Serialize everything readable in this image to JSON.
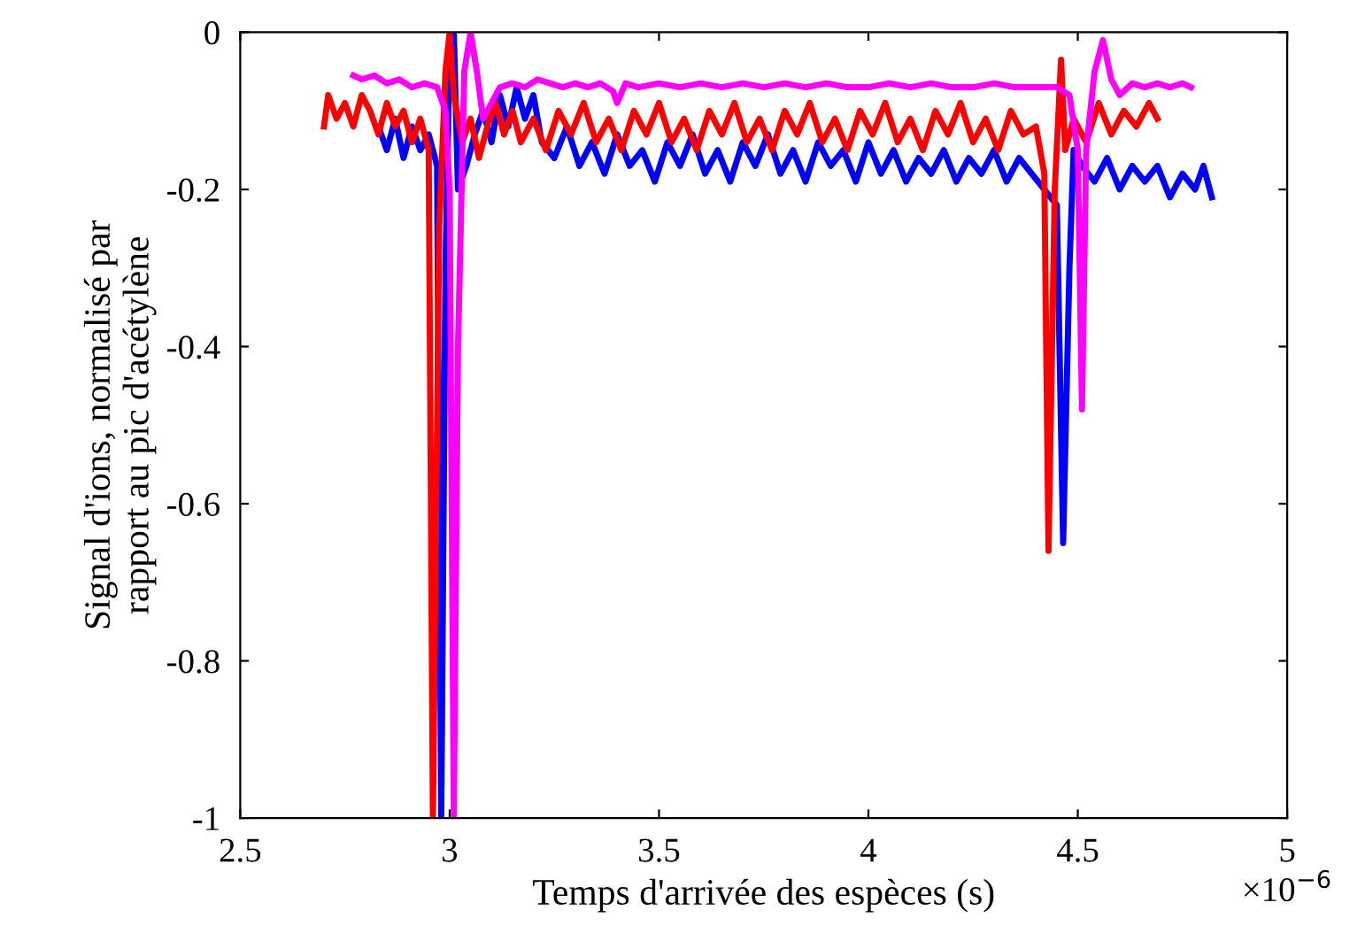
{
  "chart_data": {
    "type": "line",
    "xlabel": "Temps d'arrivée des espèces (s)",
    "ylabel": "Signal d'ions, normalisé par\nrapport au pic d'acétylène",
    "annotations": [
      "×10$^{−6}$"
    ],
    "xlim": [
      2.5,
      5
    ],
    "xticks": [
      2.5,
      3,
      3.5,
      4,
      4.5,
      5
    ],
    "ylim": [
      -1,
      0
    ],
    "yticks": [
      -1,
      -0.8,
      -0.6,
      -0.4,
      -0.2,
      0
    ],
    "grid": false,
    "marker": "none",
    "line_style": "solid",
    "series": [
      {
        "color": "#0000ff",
        "x": [
          2.83,
          2.85,
          2.87,
          2.89,
          2.91,
          2.93,
          2.95,
          2.97,
          2.98,
          2.99,
          3.0,
          3.01,
          3.02,
          3.04,
          3.06,
          3.08,
          3.1,
          3.12,
          3.14,
          3.16,
          3.18,
          3.2,
          3.22,
          3.25,
          3.28,
          3.31,
          3.34,
          3.37,
          3.4,
          3.43,
          3.46,
          3.49,
          3.52,
          3.55,
          3.58,
          3.61,
          3.64,
          3.67,
          3.7,
          3.73,
          3.76,
          3.79,
          3.82,
          3.85,
          3.88,
          3.91,
          3.94,
          3.97,
          4.0,
          4.03,
          4.06,
          4.09,
          4.12,
          4.15,
          4.18,
          4.21,
          4.24,
          4.27,
          4.3,
          4.33,
          4.36,
          4.39,
          4.42,
          4.45,
          4.465,
          4.48,
          4.49,
          4.51,
          4.54,
          4.57,
          4.6,
          4.63,
          4.66,
          4.69,
          4.72,
          4.75,
          4.78,
          4.8,
          4.82
        ],
        "values": [
          -0.12,
          -0.15,
          -0.11,
          -0.16,
          -0.12,
          -0.15,
          -0.13,
          -0.17,
          -1.0,
          -0.3,
          -0.02,
          0.0,
          -0.2,
          -0.17,
          -0.13,
          -0.1,
          -0.14,
          -0.08,
          -0.12,
          -0.07,
          -0.11,
          -0.08,
          -0.14,
          -0.16,
          -0.12,
          -0.17,
          -0.14,
          -0.18,
          -0.13,
          -0.17,
          -0.15,
          -0.19,
          -0.14,
          -0.17,
          -0.13,
          -0.18,
          -0.15,
          -0.19,
          -0.14,
          -0.17,
          -0.13,
          -0.18,
          -0.15,
          -0.19,
          -0.14,
          -0.17,
          -0.15,
          -0.19,
          -0.14,
          -0.18,
          -0.15,
          -0.19,
          -0.16,
          -0.18,
          -0.15,
          -0.19,
          -0.16,
          -0.18,
          -0.15,
          -0.19,
          -0.16,
          -0.18,
          -0.2,
          -0.22,
          -0.65,
          -0.3,
          -0.15,
          -0.17,
          -0.19,
          -0.16,
          -0.2,
          -0.17,
          -0.19,
          -0.17,
          -0.21,
          -0.18,
          -0.2,
          -0.17,
          -0.21
        ]
      },
      {
        "color": "#ff0000",
        "x": [
          2.7,
          2.71,
          2.73,
          2.75,
          2.77,
          2.79,
          2.81,
          2.83,
          2.85,
          2.87,
          2.89,
          2.91,
          2.93,
          2.95,
          2.96,
          2.975,
          2.99,
          3.0,
          3.01,
          3.03,
          3.05,
          3.07,
          3.09,
          3.11,
          3.13,
          3.15,
          3.17,
          3.2,
          3.23,
          3.26,
          3.29,
          3.32,
          3.35,
          3.38,
          3.41,
          3.44,
          3.47,
          3.5,
          3.53,
          3.56,
          3.59,
          3.62,
          3.65,
          3.68,
          3.71,
          3.74,
          3.77,
          3.8,
          3.83,
          3.86,
          3.89,
          3.92,
          3.95,
          3.98,
          4.01,
          4.04,
          4.07,
          4.1,
          4.13,
          4.16,
          4.19,
          4.22,
          4.25,
          4.28,
          4.31,
          4.34,
          4.37,
          4.4,
          4.42,
          4.43,
          4.445,
          4.46,
          4.47,
          4.49,
          4.52,
          4.55,
          4.58,
          4.61,
          4.64,
          4.67,
          4.69
        ],
        "values": [
          -0.12,
          -0.08,
          -0.11,
          -0.09,
          -0.12,
          -0.08,
          -0.1,
          -0.13,
          -0.09,
          -0.12,
          -0.1,
          -0.14,
          -0.11,
          -0.15,
          -1.0,
          -0.25,
          -0.05,
          0.0,
          -0.08,
          -0.14,
          -0.11,
          -0.16,
          -0.12,
          -0.09,
          -0.13,
          -0.1,
          -0.14,
          -0.11,
          -0.15,
          -0.1,
          -0.13,
          -0.09,
          -0.14,
          -0.11,
          -0.15,
          -0.1,
          -0.13,
          -0.09,
          -0.14,
          -0.11,
          -0.15,
          -0.1,
          -0.13,
          -0.09,
          -0.14,
          -0.11,
          -0.15,
          -0.1,
          -0.13,
          -0.09,
          -0.14,
          -0.11,
          -0.15,
          -0.1,
          -0.13,
          -0.09,
          -0.14,
          -0.11,
          -0.15,
          -0.1,
          -0.13,
          -0.09,
          -0.14,
          -0.11,
          -0.15,
          -0.1,
          -0.13,
          -0.12,
          -0.18,
          -0.66,
          -0.2,
          -0.035,
          -0.15,
          -0.11,
          -0.14,
          -0.09,
          -0.13,
          -0.1,
          -0.12,
          -0.09,
          -0.11
        ]
      },
      {
        "color": "#ff00ff",
        "x": [
          2.77,
          2.79,
          2.82,
          2.85,
          2.88,
          2.91,
          2.94,
          2.97,
          2.99,
          3.0,
          3.01,
          3.02,
          3.035,
          3.05,
          3.065,
          3.08,
          3.1,
          3.12,
          3.15,
          3.18,
          3.21,
          3.24,
          3.27,
          3.3,
          3.33,
          3.36,
          3.39,
          3.4,
          3.42,
          3.45,
          3.5,
          3.55,
          3.6,
          3.65,
          3.7,
          3.75,
          3.8,
          3.85,
          3.9,
          3.95,
          4.0,
          4.05,
          4.1,
          4.15,
          4.2,
          4.25,
          4.3,
          4.35,
          4.4,
          4.45,
          4.48,
          4.5,
          4.51,
          4.52,
          4.54,
          4.56,
          4.58,
          4.6,
          4.63,
          4.66,
          4.69,
          4.72,
          4.75,
          4.77
        ],
        "values": [
          -0.055,
          -0.06,
          -0.055,
          -0.065,
          -0.06,
          -0.07,
          -0.065,
          -0.07,
          -0.1,
          -0.2,
          -1.0,
          -0.4,
          -0.05,
          0.0,
          -0.05,
          -0.11,
          -0.09,
          -0.07,
          -0.065,
          -0.07,
          -0.06,
          -0.065,
          -0.07,
          -0.065,
          -0.07,
          -0.065,
          -0.075,
          -0.09,
          -0.065,
          -0.07,
          -0.065,
          -0.07,
          -0.065,
          -0.07,
          -0.065,
          -0.07,
          -0.065,
          -0.07,
          -0.065,
          -0.07,
          -0.07,
          -0.065,
          -0.07,
          -0.065,
          -0.07,
          -0.07,
          -0.065,
          -0.07,
          -0.07,
          -0.07,
          -0.08,
          -0.15,
          -0.48,
          -0.15,
          -0.05,
          -0.01,
          -0.06,
          -0.08,
          -0.065,
          -0.07,
          -0.065,
          -0.07,
          -0.065,
          -0.07
        ]
      }
    ]
  }
}
